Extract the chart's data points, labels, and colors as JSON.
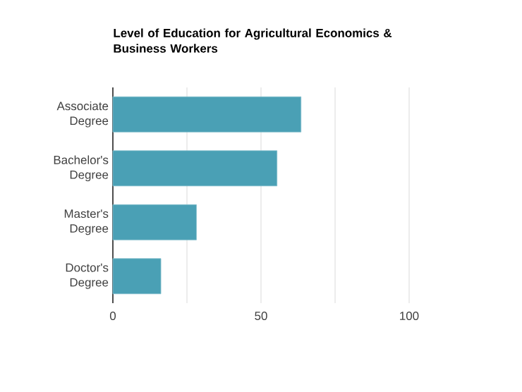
{
  "chart_data": {
    "type": "bar",
    "orientation": "horizontal",
    "title": "Level of Education for Agricultural Economics & Business Workers",
    "categories": [
      "Associate Degree",
      "Bachelor's Degree",
      "Master's Degree",
      "Doctor's Degree"
    ],
    "values": [
      63.5,
      55.4,
      28.2,
      16.2
    ],
    "color": "#4aa0b5",
    "xlim": [
      0,
      100
    ],
    "xticks": [
      0,
      {
        "value": 25,
        "label": null
      },
      50,
      {
        "value": 75,
        "label": null
      },
      100
    ],
    "grid": "x"
  }
}
